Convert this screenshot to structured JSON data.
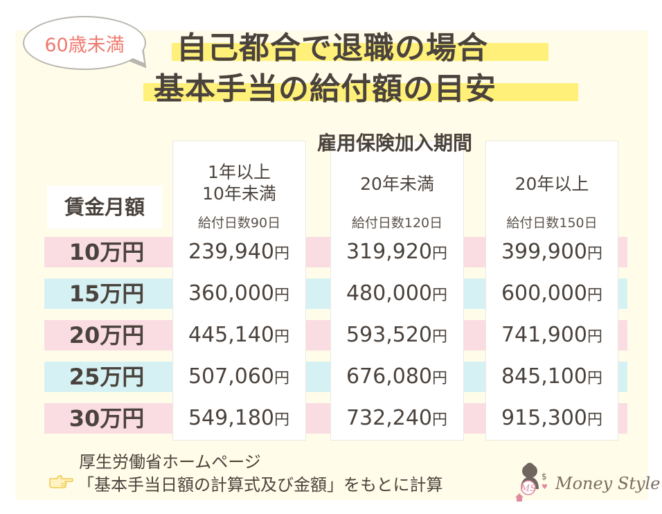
{
  "badge": "60歳未満",
  "title": {
    "line1": "自己都合で退職の場合",
    "line2": "基本手当の給付額の目安"
  },
  "table": {
    "period_header": "雇用保険加入期間",
    "row_header": "賃金月額",
    "columns": [
      {
        "label_line1": "1年以上",
        "label_line2": "10年未満",
        "days": "給付日数90日"
      },
      {
        "label_line1": "20年未満",
        "label_line2": "",
        "days": "給付日数120日"
      },
      {
        "label_line1": "20年以上",
        "label_line2": "",
        "days": "給付日数150日"
      }
    ],
    "rows": [
      {
        "wage": "10万円",
        "values": [
          "239,940",
          "319,920",
          "399,900"
        ],
        "color": "#fadce3"
      },
      {
        "wage": "15万円",
        "values": [
          "360,000",
          "480,000",
          "600,000"
        ],
        "color": "#d6f1f4"
      },
      {
        "wage": "20万円",
        "values": [
          "445,140",
          "593,520",
          "741,900"
        ],
        "color": "#fadce3"
      },
      {
        "wage": "25万円",
        "values": [
          "507,060",
          "676,080",
          "845,100"
        ],
        "color": "#d6f1f4"
      },
      {
        "wage": "30万円",
        "values": [
          "549,180",
          "732,240",
          "915,300"
        ],
        "color": "#fadce3"
      }
    ],
    "unit": "円"
  },
  "source": {
    "line1": "厚生労働省ホームページ",
    "line2": "「基本手当日額の計算式及び金額」をもとに計算",
    "icon": "pointing-hand-icon"
  },
  "brand": {
    "name": "Money Style",
    "logo_initials": "MS",
    "logo_icon": "money-style-logo"
  },
  "colors": {
    "highlight": "#fff07a",
    "pink_row": "#fadce3",
    "blue_row": "#d6f1f4",
    "badge_text": "#ef7a6f",
    "background": "#fffde9"
  }
}
